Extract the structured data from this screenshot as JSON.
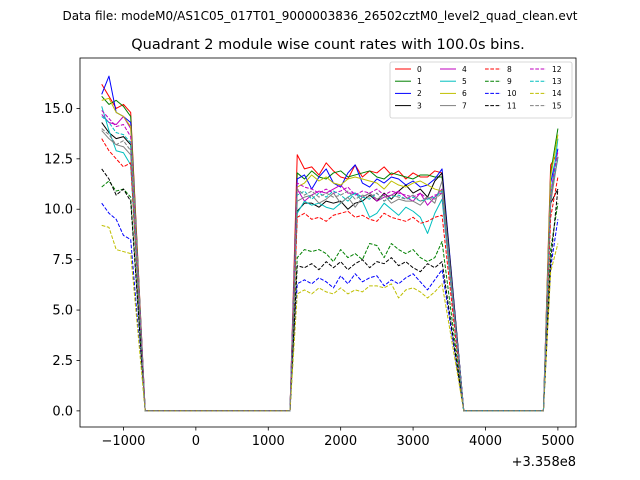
{
  "header_text": "Data file: modeM0/AS1C05_017T01_9000003836_26502cztM0_level2_quad_clean.evt",
  "chart_data": {
    "type": "line",
    "title": "Quadrant 2 module wise count rates with 100.0s bins.",
    "xlabel": "",
    "ylabel": "",
    "x_offset_label": "+3.358e8",
    "xlim": [
      -1600,
      5250
    ],
    "ylim": [
      -0.8,
      17.5
    ],
    "xticks": [
      -1000,
      0,
      1000,
      2000,
      3000,
      4000,
      5000
    ],
    "xtick_labels": [
      "−1000",
      "0",
      "1000",
      "2000",
      "3000",
      "4000",
      "5000"
    ],
    "yticks": [
      0.0,
      2.5,
      5.0,
      7.5,
      10.0,
      12.5,
      15.0
    ],
    "ytick_labels": [
      "0.0",
      "2.5",
      "5.0",
      "7.5",
      "10.0",
      "12.5",
      "15.0"
    ],
    "grid": false,
    "legend_position": "top-right",
    "segments": [
      {
        "x_start": -1300,
        "x_end": -900
      },
      {
        "x_start": 1400,
        "x_end": 3400
      },
      {
        "x_start": 4900,
        "x_end": 5000
      }
    ],
    "zero_x": [
      -700,
      1300,
      3700,
      4800
    ],
    "series": [
      {
        "name": "0",
        "color": "#ff0000",
        "dashed": false,
        "seg_values": [
          [
            16.2,
            15.6,
            15.0,
            15.2,
            14.8
          ],
          [
            12.7,
            12.0,
            12.1,
            11.7,
            12.3,
            11.9,
            11.6,
            11.5,
            12.2,
            11.6,
            11.9,
            11.8,
            12.1,
            11.7,
            11.9,
            11.5,
            11.8,
            11.6,
            11.6,
            11.9,
            11.8
          ],
          [
            12.2,
            12.8
          ]
        ]
      },
      {
        "name": "1",
        "color": "#008000",
        "dashed": false,
        "seg_values": [
          [
            15.6,
            15.2,
            15.4,
            15.1,
            14.6
          ],
          [
            11.8,
            11.5,
            11.9,
            11.6,
            11.5,
            11.8,
            11.9,
            11.6,
            11.7,
            11.8,
            11.9,
            11.6,
            11.5,
            11.8,
            11.7,
            11.6,
            11.5,
            11.7,
            11.7,
            11.6,
            11.6
          ],
          [
            11.8,
            14.0
          ]
        ]
      },
      {
        "name": "2",
        "color": "#0000ff",
        "dashed": false,
        "seg_values": [
          [
            15.7,
            16.6,
            14.8,
            14.6,
            14.3
          ],
          [
            11.5,
            11.7,
            11.0,
            11.6,
            12.0,
            11.3,
            11.1,
            11.8,
            12.2,
            11.3,
            11.1,
            11.5,
            11.3,
            11.6,
            11.5,
            11.2,
            11.4,
            11.1,
            11.2,
            11.5,
            12.0
          ],
          [
            11.3,
            13.0
          ]
        ]
      },
      {
        "name": "3",
        "color": "#000000",
        "dashed": false,
        "seg_values": [
          [
            14.3,
            13.8,
            13.5,
            13.6,
            13.2
          ],
          [
            9.9,
            10.3,
            10.3,
            10.1,
            10.4,
            10.3,
            10.4,
            10.0,
            10.3,
            10.4,
            10.7,
            10.4,
            10.8,
            10.5,
            10.9,
            11.2,
            10.8,
            11.0,
            10.6,
            11.4,
            11.8
          ],
          [
            10.3,
            11.0
          ]
        ]
      },
      {
        "name": "4",
        "color": "#bf00bf",
        "dashed": false,
        "seg_values": [
          [
            14.7,
            14.3,
            14.2,
            14.6,
            14.0
          ],
          [
            11.0,
            10.4,
            10.7,
            10.9,
            10.8,
            11.0,
            11.2,
            10.8,
            10.8,
            10.6,
            10.8,
            10.4,
            10.6,
            10.7,
            10.9,
            10.6,
            10.4,
            10.8,
            10.2,
            10.6,
            11.0
          ],
          [
            10.5,
            12.6
          ]
        ]
      },
      {
        "name": "5",
        "color": "#00bfbf",
        "dashed": false,
        "seg_values": [
          [
            15.1,
            13.9,
            12.9,
            12.8,
            12.2
          ],
          [
            9.8,
            10.4,
            10.2,
            10.3,
            10.1,
            10.0,
            10.3,
            10.6,
            10.8,
            10.4,
            9.6,
            9.8,
            10.3,
            10.0,
            9.7,
            10.1,
            9.9,
            9.6,
            8.8,
            9.8,
            10.5
          ],
          [
            10.6,
            13.5
          ]
        ]
      },
      {
        "name": "6",
        "color": "#bfbf00",
        "dashed": false,
        "seg_values": [
          [
            15.4,
            15.5,
            14.8,
            14.6,
            14.1
          ],
          [
            11.1,
            11.3,
            11.7,
            11.4,
            11.6,
            11.3,
            11.2,
            11.5,
            11.6,
            11.5,
            11.4,
            11.3,
            11.0,
            11.4,
            11.2,
            11.1,
            11.3,
            11.4,
            11.2,
            11.0,
            10.9
          ],
          [
            11.6,
            13.7
          ]
        ]
      },
      {
        "name": "7",
        "color": "#808080",
        "dashed": false,
        "seg_values": [
          [
            13.9,
            13.5,
            13.2,
            13.1,
            12.7
          ],
          [
            10.4,
            10.6,
            10.7,
            10.3,
            10.5,
            10.8,
            10.3,
            10.6,
            10.1,
            10.6,
            10.8,
            10.5,
            10.7,
            10.3,
            10.5,
            10.4,
            10.4,
            10.2,
            10.6,
            10.3,
            11.4
          ],
          [
            10.3,
            12.6
          ]
        ]
      },
      {
        "name": "8",
        "color": "#ff0000",
        "dashed": true,
        "seg_values": [
          [
            13.5,
            12.9,
            12.5,
            12.1,
            12.3
          ],
          [
            9.6,
            9.8,
            9.5,
            9.6,
            9.4,
            9.7,
            9.8,
            9.9,
            9.6,
            9.7,
            9.5,
            9.4,
            9.8,
            9.6,
            9.5,
            9.4,
            9.6,
            9.3,
            9.4,
            9.6,
            9.7
          ],
          [
            9.6,
            11.6
          ]
        ]
      },
      {
        "name": "9",
        "color": "#008000",
        "dashed": true,
        "seg_values": [
          [
            11.1,
            11.4,
            10.9,
            11.0,
            10.6
          ],
          [
            7.6,
            8.0,
            7.9,
            8.0,
            7.8,
            7.4,
            8.0,
            7.6,
            7.8,
            7.5,
            8.3,
            8.2,
            7.6,
            8.3,
            8.0,
            7.8,
            8.0,
            7.6,
            7.4,
            7.6,
            8.4
          ],
          [
            8.0,
            10.3
          ]
        ]
      },
      {
        "name": "10",
        "color": "#0000ff",
        "dashed": true,
        "seg_values": [
          [
            10.3,
            9.8,
            9.5,
            8.7,
            8.5
          ],
          [
            6.3,
            6.5,
            6.3,
            6.6,
            6.4,
            6.1,
            6.7,
            6.3,
            6.8,
            6.4,
            6.6,
            6.7,
            6.2,
            6.5,
            6.3,
            6.6,
            6.8,
            6.4,
            6.0,
            6.5,
            7.0
          ],
          [
            7.1,
            9.5
          ]
        ]
      },
      {
        "name": "11",
        "color": "#000000",
        "dashed": true,
        "seg_values": [
          [
            12.0,
            11.5,
            10.7,
            11.0,
            10.4
          ],
          [
            7.2,
            7.1,
            7.3,
            7.0,
            7.4,
            7.1,
            7.4,
            7.0,
            7.3,
            7.5,
            7.1,
            7.4,
            7.3,
            7.6,
            7.2,
            7.4,
            7.1,
            6.9,
            7.3,
            7.1,
            7.4
          ],
          [
            7.4,
            11.0
          ]
        ]
      },
      {
        "name": "12",
        "color": "#bf00bf",
        "dashed": true,
        "seg_values": [
          [
            14.9,
            14.5,
            14.1,
            14.2,
            13.6
          ],
          [
            11.3,
            11.1,
            11.0,
            10.8,
            11.0,
            10.8,
            10.9,
            11.1,
            10.7,
            10.9,
            10.8,
            11.0,
            10.7,
            10.9,
            10.8,
            10.7,
            10.6,
            10.8,
            10.5,
            10.7,
            10.8
          ],
          [
            10.8,
            12.9
          ]
        ]
      },
      {
        "name": "13",
        "color": "#00bfbf",
        "dashed": true,
        "seg_values": [
          [
            14.6,
            14.3,
            13.8,
            13.7,
            13.3
          ],
          [
            10.7,
            10.9,
            10.5,
            10.8,
            10.6,
            10.9,
            10.7,
            10.4,
            10.8,
            10.6,
            10.5,
            10.8,
            10.4,
            10.6,
            10.7,
            10.5,
            10.6,
            10.4,
            10.5,
            10.6,
            10.9
          ],
          [
            10.7,
            12.5
          ]
        ]
      },
      {
        "name": "14",
        "color": "#bfbf00",
        "dashed": true,
        "seg_values": [
          [
            9.2,
            9.1,
            8.0,
            7.9,
            7.8
          ],
          [
            5.8,
            6.0,
            5.8,
            6.1,
            5.9,
            5.8,
            6.1,
            5.8,
            6.0,
            5.9,
            6.2,
            6.2,
            6.1,
            6.3,
            5.6,
            6.0,
            6.1,
            5.9,
            5.6,
            5.9,
            6.3
          ],
          [
            6.9,
            8.3
          ]
        ]
      },
      {
        "name": "15",
        "color": "#808080",
        "dashed": true,
        "seg_values": [
          [
            14.0,
            13.7,
            13.2,
            13.4,
            12.9
          ],
          [
            11.0,
            10.7,
            10.9,
            10.6,
            10.8,
            10.6,
            10.7,
            10.9,
            10.5,
            10.7,
            10.6,
            10.8,
            10.4,
            10.7,
            10.6,
            10.5,
            10.7,
            10.4,
            10.6,
            10.5,
            10.8
          ],
          [
            10.6,
            12.6
          ]
        ]
      }
    ]
  }
}
